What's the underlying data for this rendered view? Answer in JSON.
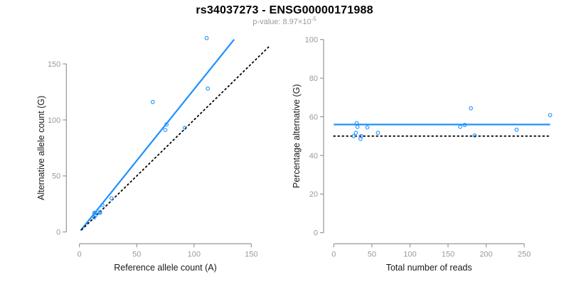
{
  "header": {
    "title": "rs34037273 - ENSG00000171988",
    "p_label": "p-value: ",
    "p_base": "8.97×10",
    "p_exponent": "-5"
  },
  "colors": {
    "accent_blue": "#1E90FF",
    "line_black": "#000000",
    "axis_gray": "#8e8e8e",
    "tick_label_gray": "#9a9a9a",
    "axis_title_color": "#1a1a1a",
    "title_black": "#000000",
    "subtitle_gray": "#9a9a9a"
  },
  "chart_data": [
    {
      "type": "scatter",
      "name": "allele-counts-scatter",
      "xlabel": "Reference allele count (A)",
      "ylabel": "Alternative allele count (G)",
      "xticks": [
        0,
        50,
        100,
        150
      ],
      "yticks": [
        0,
        50,
        100,
        150
      ],
      "xlim": [
        0,
        165
      ],
      "ylim": [
        0,
        178
      ],
      "grid": false,
      "legend": "none",
      "points": [
        [
          13,
          13
        ],
        [
          14,
          15
        ],
        [
          13,
          17
        ],
        [
          14,
          17
        ],
        [
          18,
          17
        ],
        [
          18,
          18
        ],
        [
          20,
          24
        ],
        [
          28,
          30
        ],
        [
          64,
          116
        ],
        [
          75,
          91
        ],
        [
          76,
          96
        ],
        [
          92,
          93
        ],
        [
          112,
          128
        ],
        [
          111,
          173
        ]
      ],
      "lines": [
        {
          "name": "fit-line",
          "kind": "slope",
          "slope": 1.273,
          "intercept": 0,
          "x_from": 1,
          "x_to": 135,
          "color": "blue",
          "style": "solid"
        },
        {
          "name": "identity-line",
          "kind": "slope",
          "slope": 1,
          "intercept": 0,
          "x_from": 2,
          "x_to": 165,
          "color": "black",
          "style": "dotted"
        }
      ]
    },
    {
      "type": "scatter",
      "name": "percentage-scatter",
      "xlabel": "Total number of reads",
      "ylabel": "Percentage alternative (G)",
      "xticks": [
        0,
        50,
        100,
        150,
        200,
        250
      ],
      "yticks": [
        0,
        20,
        40,
        60,
        80,
        100
      ],
      "xlim": [
        0,
        290
      ],
      "ylim": [
        0,
        100
      ],
      "grid": false,
      "legend": "none",
      "points": [
        [
          26,
          50
        ],
        [
          29,
          51.7
        ],
        [
          30,
          56.7
        ],
        [
          31,
          54.8
        ],
        [
          35,
          48.6
        ],
        [
          36,
          50
        ],
        [
          44,
          54.5
        ],
        [
          58,
          51.7
        ],
        [
          166,
          54.8
        ],
        [
          172,
          55.8
        ],
        [
          180,
          64.4
        ],
        [
          185,
          50.3
        ],
        [
          240,
          53.3
        ],
        [
          284,
          60.9
        ]
      ],
      "lines": [
        {
          "name": "mean-percentage-line",
          "kind": "h",
          "y": 56,
          "x_from": 0,
          "x_to": 284,
          "color": "blue",
          "style": "solid"
        },
        {
          "name": "null-50pct-line",
          "kind": "h",
          "y": 50,
          "x_from": 0,
          "x_to": 284,
          "color": "black",
          "style": "dotted"
        }
      ]
    }
  ]
}
